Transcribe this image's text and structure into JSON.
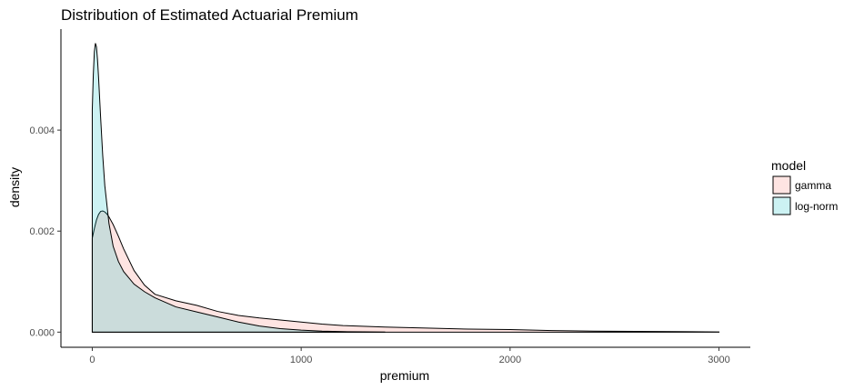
{
  "chart_data": {
    "type": "area",
    "title": "Distribution of Estimated Actuarial Premium",
    "xlabel": "premium",
    "ylabel": "density",
    "xlim": [
      -150,
      3150
    ],
    "ylim": [
      -0.0003,
      0.006
    ],
    "x_ticks": [
      0,
      1000,
      2000,
      3000
    ],
    "x_tick_labels": [
      "0",
      "1000",
      "2000",
      "3000"
    ],
    "y_ticks": [
      0,
      0.002,
      0.004
    ],
    "y_tick_labels": [
      "0.000",
      "0.002",
      "0.004"
    ],
    "grid": false,
    "legend": {
      "title": "model",
      "placement": "right"
    },
    "series": [
      {
        "name": "gamma",
        "fill": "#F8766D",
        "fill_opacity": 0.2,
        "x": [
          0,
          10,
          20,
          30,
          40,
          50,
          60,
          70,
          80,
          100,
          125,
          150,
          200,
          250,
          300,
          400,
          500,
          600,
          700,
          800,
          900,
          1000,
          1100,
          1200,
          1400,
          1600,
          1800,
          2000,
          2200,
          2400,
          2600,
          2800,
          3000
        ],
        "y": [
          0.00186,
          0.00205,
          0.00222,
          0.00233,
          0.00239,
          0.0024,
          0.00238,
          0.00234,
          0.00228,
          0.00213,
          0.0019,
          0.00165,
          0.00122,
          0.00093,
          0.00075,
          0.00062,
          0.00053,
          0.00041,
          0.00033,
          0.00028,
          0.00024,
          0.0002,
          0.00016,
          0.00013,
          0.0001,
          8e-05,
          6e-05,
          5e-05,
          3e-05,
          2e-05,
          1.5e-05,
          1e-05,
          5e-06
        ]
      },
      {
        "name": "log-norm",
        "fill": "#00BFC4",
        "fill_opacity": 0.2,
        "x": [
          0,
          5,
          10,
          15,
          20,
          25,
          30,
          35,
          40,
          50,
          60,
          80,
          100,
          125,
          150,
          200,
          250,
          300,
          400,
          500,
          600,
          700,
          800,
          900,
          1000,
          1100,
          1200,
          1300,
          1400
        ],
        "y": [
          0.0044,
          0.0051,
          0.00555,
          0.00572,
          0.00565,
          0.0054,
          0.00505,
          0.00465,
          0.00425,
          0.0035,
          0.0029,
          0.00215,
          0.0017,
          0.0014,
          0.0012,
          0.00095,
          0.0008,
          0.00068,
          0.0005,
          0.0004,
          0.0003,
          0.0002,
          0.00012,
          7e-05,
          4e-05,
          2e-05,
          1e-05,
          5e-06,
          2e-06
        ]
      }
    ]
  }
}
